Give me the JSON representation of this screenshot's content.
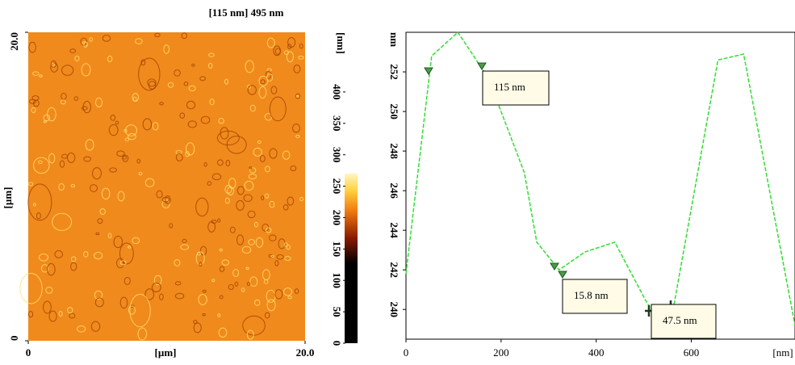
{
  "chart_data": [
    {
      "type": "heatmap",
      "title": "[115 nm] 495 nm",
      "xlabel": "[µm]",
      "ylabel": "[µm]",
      "xlim": [
        0,
        20
      ],
      "ylim": [
        0,
        20
      ],
      "xticks": [
        0,
        {
          "value": 20,
          "label": "20.0"
        }
      ],
      "yticks": [
        0,
        {
          "value": 20,
          "label": "20.0"
        }
      ],
      "colorbar_label": "[nm]",
      "clim": [
        0,
        495
      ],
      "cticks": [
        0,
        50,
        100,
        150,
        200,
        250,
        300,
        350,
        400
      ],
      "color": "#f08a1c"
    },
    {
      "type": "line",
      "ylabel": "nm",
      "xlabel": "[nm]",
      "x": [
        0,
        54,
        109,
        173,
        249,
        275,
        322,
        376,
        439,
        503,
        541,
        564,
        656,
        710,
        818
      ],
      "series": [
        {
          "color": "#33dd33",
          "values": [
            241.8,
            252.8,
            254,
            251.7,
            246.9,
            243.4,
            242,
            242.9,
            243.4,
            240.5,
            239.0,
            240.3,
            252.6,
            252.9,
            239.2
          ]
        }
      ],
      "xlim": [
        0,
        818
      ],
      "ylim": [
        238.5,
        254
      ],
      "xticks": [
        0,
        200,
        400,
        600
      ],
      "yticks": [
        240,
        242,
        244,
        246,
        248,
        250,
        252
      ],
      "annotations": [
        "115 nm",
        "15.8 nm",
        "47.5 nm"
      ]
    }
  ]
}
